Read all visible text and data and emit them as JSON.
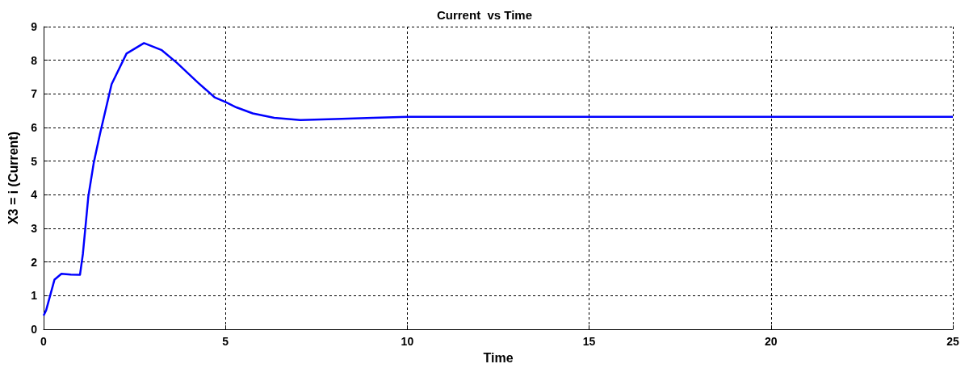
{
  "chart_data": {
    "type": "line",
    "title": "Current  vs Time",
    "xlabel": "Time",
    "ylabel": "X3 = i (Current)",
    "xlim": [
      0,
      25
    ],
    "xticks": [
      0,
      5,
      10,
      15,
      20,
      25
    ],
    "ylim": [
      0,
      9
    ],
    "yticks": [
      0,
      1,
      2,
      3,
      4,
      5,
      6,
      7,
      8,
      9
    ],
    "grid": true,
    "series": [
      {
        "color": "#0000ff",
        "x": [
          0,
          0.07,
          0.3,
          0.49,
          0.75,
          1.0,
          1.08,
          1.23,
          1.38,
          1.55,
          1.87,
          2.28,
          2.76,
          3.25,
          3.66,
          4.25,
          4.7,
          5.0,
          5.3,
          5.75,
          6.34,
          7.06,
          8.02,
          9.06,
          10,
          15,
          20,
          25
        ],
        "values": [
          0.41,
          0.57,
          1.48,
          1.65,
          1.63,
          1.62,
          2.24,
          3.95,
          4.96,
          5.81,
          7.29,
          8.2,
          8.51,
          8.3,
          7.93,
          7.33,
          6.9,
          6.76,
          6.6,
          6.42,
          6.29,
          6.22,
          6.25,
          6.29,
          6.32,
          6.32,
          6.32,
          6.32
        ]
      }
    ]
  }
}
